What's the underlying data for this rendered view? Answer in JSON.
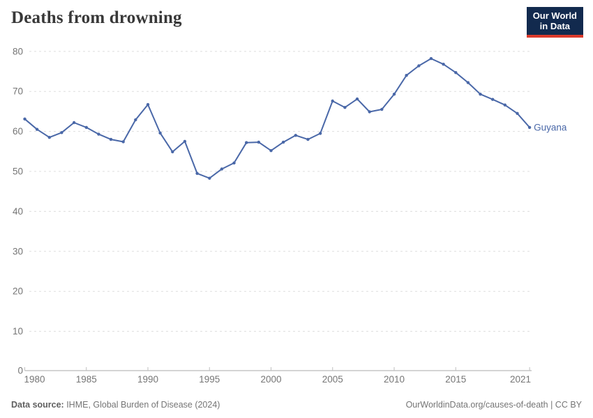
{
  "header": {
    "title": "Deaths from drowning",
    "logo_line1": "Our World",
    "logo_line2": "in Data"
  },
  "chart_data": {
    "type": "line",
    "title": "Deaths from drowning",
    "x": [
      1980,
      1981,
      1982,
      1983,
      1984,
      1985,
      1986,
      1987,
      1988,
      1989,
      1990,
      1991,
      1992,
      1993,
      1994,
      1995,
      1996,
      1997,
      1998,
      1999,
      2000,
      2001,
      2002,
      2003,
      2004,
      2005,
      2006,
      2007,
      2008,
      2009,
      2010,
      2011,
      2012,
      2013,
      2014,
      2015,
      2016,
      2017,
      2018,
      2019,
      2020,
      2021
    ],
    "series": [
      {
        "name": "Guyana",
        "values": [
          63.1,
          60.5,
          58.5,
          59.7,
          62.2,
          61.0,
          59.3,
          58.0,
          57.4,
          62.9,
          66.7,
          59.6,
          54.9,
          57.5,
          49.5,
          48.3,
          50.6,
          52.1,
          57.2,
          57.3,
          55.2,
          57.3,
          59.0,
          58.0,
          59.5,
          67.6,
          66.0,
          68.1,
          64.9,
          65.5,
          69.3,
          74.0,
          76.4,
          78.2,
          76.8,
          74.7,
          72.2,
          69.3,
          68.0,
          66.6,
          64.5,
          61.0
        ]
      }
    ],
    "xlabel": "",
    "ylabel": "",
    "ylim": [
      0,
      80
    ],
    "xlim": [
      1980,
      2021
    ],
    "yticks": [
      0,
      10,
      20,
      30,
      40,
      50,
      60,
      70,
      80
    ],
    "xticks": [
      1980,
      1985,
      1990,
      1995,
      2000,
      2005,
      2010,
      2015,
      2021
    ],
    "grid": "horizontal-dashed",
    "legend": "entity-label-right-of-line"
  },
  "colors": {
    "line": "#4a68a8",
    "entity_label": "#4a68a8",
    "grid": "#dddddd",
    "axis": "#a9a9a9",
    "tick": "#bfbfbf",
    "tick_label": "#757575",
    "title": "#383838",
    "logo_bg": "#122a4e",
    "logo_red": "#dc3a2b"
  },
  "footer": {
    "source_label": "Data source:",
    "source_text": " IHME, Global Burden of Disease (2024)",
    "right_text": "OurWorldinData.org/causes-of-death | CC BY"
  }
}
